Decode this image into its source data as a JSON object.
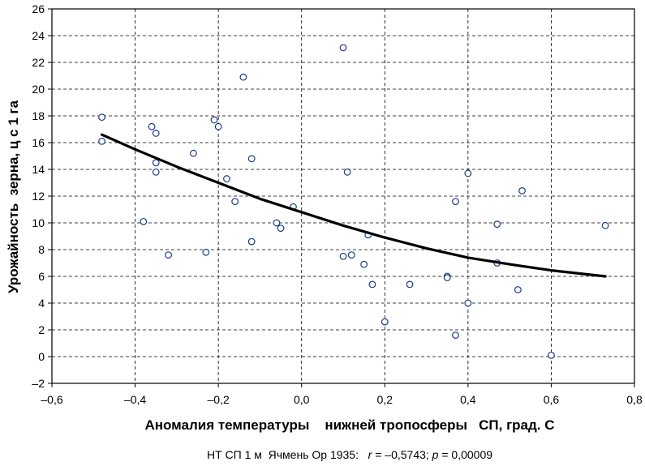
{
  "chart_data": {
    "type": "scatter",
    "xlabel": "Аномалия температуры    нижней тропосферы   СП, град. С",
    "ylabel": "Урожайность  зерна, ц с 1 га",
    "xlim": [
      -0.6,
      0.8
    ],
    "ylim": [
      -2,
      26
    ],
    "x_ticks": [
      -0.6,
      -0.4,
      -0.2,
      0.0,
      0.2,
      0.4,
      0.6,
      0.8
    ],
    "x_tick_labels": [
      "–0,6",
      "–0,4",
      "–0,2",
      "0,0",
      "0,2",
      "0,4",
      "0,6",
      "0,8"
    ],
    "y_ticks": [
      -2,
      0,
      2,
      4,
      6,
      8,
      10,
      12,
      14,
      16,
      18,
      20,
      22,
      24,
      26
    ],
    "y_tick_labels": [
      "–2",
      "0",
      "2",
      "4",
      "6",
      "8",
      "10",
      "12",
      "14",
      "16",
      "18",
      "20",
      "22",
      "24",
      "26"
    ],
    "grid": true,
    "point_color": "#1a3a8a",
    "curve_color": "#000000",
    "caption": {
      "prefix": "НТ СП 1 м  Ячмень Ор 1935:   ",
      "r_sym": "r",
      "r_val": " = –0,5743; ",
      "p_sym": "p",
      "p_val": " = 0,00009"
    },
    "points": [
      {
        "x": -0.48,
        "y": 17.9
      },
      {
        "x": -0.48,
        "y": 16.1
      },
      {
        "x": -0.38,
        "y": 10.1
      },
      {
        "x": -0.36,
        "y": 17.2
      },
      {
        "x": -0.35,
        "y": 16.7
      },
      {
        "x": -0.35,
        "y": 14.5
      },
      {
        "x": -0.35,
        "y": 13.8
      },
      {
        "x": -0.32,
        "y": 7.6
      },
      {
        "x": -0.26,
        "y": 15.2
      },
      {
        "x": -0.23,
        "y": 7.8
      },
      {
        "x": -0.21,
        "y": 17.7
      },
      {
        "x": -0.2,
        "y": 17.2
      },
      {
        "x": -0.18,
        "y": 13.3
      },
      {
        "x": -0.16,
        "y": 11.6
      },
      {
        "x": -0.14,
        "y": 20.9
      },
      {
        "x": -0.12,
        "y": 14.8
      },
      {
        "x": -0.12,
        "y": 8.6
      },
      {
        "x": -0.06,
        "y": 10.0
      },
      {
        "x": -0.05,
        "y": 9.6
      },
      {
        "x": -0.02,
        "y": 11.2
      },
      {
        "x": 0.1,
        "y": 23.1
      },
      {
        "x": 0.1,
        "y": 7.5
      },
      {
        "x": 0.11,
        "y": 13.8
      },
      {
        "x": 0.12,
        "y": 7.6
      },
      {
        "x": 0.15,
        "y": 6.9
      },
      {
        "x": 0.16,
        "y": 9.1
      },
      {
        "x": 0.17,
        "y": 5.4
      },
      {
        "x": 0.2,
        "y": 2.6
      },
      {
        "x": 0.26,
        "y": 5.4
      },
      {
        "x": 0.35,
        "y": 6.0
      },
      {
        "x": 0.35,
        "y": 5.9
      },
      {
        "x": 0.37,
        "y": 11.6
      },
      {
        "x": 0.37,
        "y": 1.6
      },
      {
        "x": 0.4,
        "y": 13.7
      },
      {
        "x": 0.4,
        "y": 4.0
      },
      {
        "x": 0.47,
        "y": 9.9
      },
      {
        "x": 0.47,
        "y": 7.0
      },
      {
        "x": 0.52,
        "y": 5.0
      },
      {
        "x": 0.53,
        "y": 12.4
      },
      {
        "x": 0.6,
        "y": 0.1
      },
      {
        "x": 0.73,
        "y": 9.8
      }
    ],
    "fit_curve": [
      {
        "x": -0.48,
        "y": 16.6
      },
      {
        "x": -0.4,
        "y": 15.5
      },
      {
        "x": -0.3,
        "y": 14.2
      },
      {
        "x": -0.2,
        "y": 13.0
      },
      {
        "x": -0.1,
        "y": 11.8
      },
      {
        "x": 0.0,
        "y": 10.8
      },
      {
        "x": 0.1,
        "y": 9.8
      },
      {
        "x": 0.2,
        "y": 8.9
      },
      {
        "x": 0.3,
        "y": 8.1
      },
      {
        "x": 0.4,
        "y": 7.4
      },
      {
        "x": 0.5,
        "y": 6.9
      },
      {
        "x": 0.6,
        "y": 6.45
      },
      {
        "x": 0.73,
        "y": 6.0
      }
    ]
  }
}
